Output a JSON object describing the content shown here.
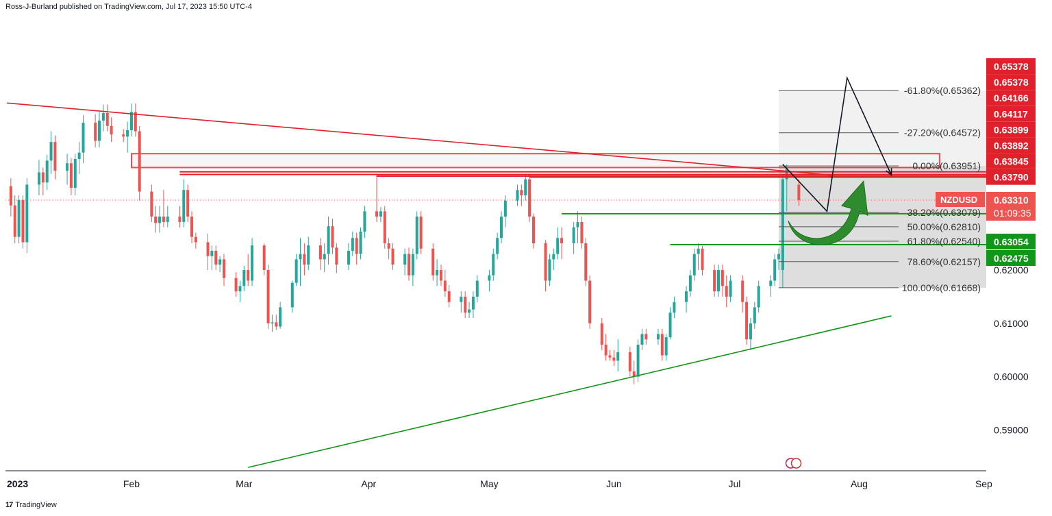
{
  "header": {
    "published_by": "Ross-J-Burland published on TradingView.com, Jul 17, 2023 15:50 UTC-4"
  },
  "footer": {
    "brand": "TradingView",
    "brand_mark": "17"
  },
  "colors": {
    "up": "#26a69a",
    "down": "#ef5350",
    "resistance": "#e0202a",
    "support": "#109618",
    "fib_zone": "#d3d3d3",
    "supply_zone": "#f3f4f7"
  },
  "chart_data": {
    "type": "candlestick",
    "symbol": "NZDUSD",
    "timeframe": "daily",
    "y_axis": {
      "ylim": [
        0.5825,
        0.6688
      ],
      "ticks": [
        "0.62000",
        "0.61000",
        "0.60000",
        "0.59000"
      ],
      "tick_values": [
        0.62,
        0.61,
        0.6,
        0.59
      ]
    },
    "x_axis": {
      "ticks": [
        "2023",
        "Feb",
        "Mar",
        "Apr",
        "May",
        "Jun",
        "Jul",
        "Aug",
        "Sep"
      ],
      "tick_dates": [
        "2023-01-01",
        "2023-02-01",
        "2023-03-01",
        "2023-04-01",
        "2023-05-01",
        "2023-06-01",
        "2023-07-01",
        "2023-08-01",
        "2023-09-01"
      ]
    },
    "price_labels": [
      {
        "text": "0.65378",
        "value": 0.65378,
        "color": "#e0202a"
      },
      {
        "text": "0.65378",
        "value": 0.65378,
        "color": "#e0202a"
      },
      {
        "text": "0.64166",
        "value": 0.64166,
        "color": "#e0202a"
      },
      {
        "text": "0.64117",
        "value": 0.64117,
        "color": "#e0202a"
      },
      {
        "text": "0.63899",
        "value": 0.63899,
        "color": "#e0202a"
      },
      {
        "text": "0.63892",
        "value": 0.63892,
        "color": "#e0202a"
      },
      {
        "text": "0.63845",
        "value": 0.63845,
        "color": "#e0202a"
      },
      {
        "text": "0.63790",
        "value": 0.6379,
        "color": "#e0202a"
      }
    ],
    "current_price": {
      "symbol": "NZDUSD",
      "price": "0.63310",
      "value": 0.6331,
      "countdown": "01:09:35"
    },
    "support_labels": [
      {
        "text": "0.63054",
        "value": 0.63054
      },
      {
        "text": "0.62475",
        "value": 0.62475
      }
    ],
    "fibonacci": [
      {
        "label": "-61.80%(0.65362)",
        "value": 0.65362
      },
      {
        "label": "-27.20%(0.64572)",
        "value": 0.64572
      },
      {
        "label": "0.00%(0.63951)",
        "value": 0.63951
      },
      {
        "label": "38.20%(0.63079)",
        "value": 0.63079
      },
      {
        "label": "50.00%(0.62810)",
        "value": 0.6281
      },
      {
        "label": "61.80%(0.62540)",
        "value": 0.6254
      },
      {
        "label": "78.60%(0.62157)",
        "value": 0.62157
      },
      {
        "label": "100.00%(0.61668)",
        "value": 0.61668
      }
    ],
    "horizontal_levels": [
      {
        "start": "2023-02-01",
        "end": "2023-08-21",
        "value": 0.6418,
        "kind": "supply-top"
      },
      {
        "start": "2023-02-01",
        "end": "2023-08-21",
        "value": 0.6392,
        "kind": "supply-bottom"
      },
      {
        "start": "2023-02-13",
        "end": "2023-07-31",
        "value": 0.6384,
        "kind": "resistance"
      },
      {
        "start": "2023-02-13",
        "end": "2023-07-31",
        "value": 0.6379,
        "kind": "resistance"
      },
      {
        "start": "2023-04-03",
        "end": "2023-07-31",
        "value": 0.6376,
        "kind": "resistance"
      },
      {
        "start": "2023-05-11",
        "end": "2023-07-31",
        "value": 0.6374,
        "kind": "resistance"
      },
      {
        "start": "2023-05-19",
        "end": "2023-07-31",
        "value": 0.63054,
        "kind": "support"
      },
      {
        "start": "2023-06-15",
        "end": "2023-07-31",
        "value": 0.62475,
        "kind": "support"
      }
    ],
    "trendlines": [
      {
        "kind": "resistance",
        "start": [
          "2023-01-01",
          0.6513
        ],
        "end": [
          "2023-07-25",
          0.6378
        ]
      },
      {
        "kind": "support",
        "start": [
          "2023-03-02",
          0.583
        ],
        "end": [
          "2023-08-09",
          0.6114
        ]
      }
    ],
    "projection": [
      [
        "2023-07-13",
        0.6398
      ],
      [
        "2023-07-24",
        0.631
      ],
      [
        "2023-07-29",
        0.656
      ],
      [
        "2023-08-09",
        0.6378
      ]
    ],
    "candles_ohlc": [
      [
        "2023-01-02",
        0.6357,
        0.6372,
        0.63,
        0.6321
      ],
      [
        "2023-01-03",
        0.6321,
        0.634,
        0.625,
        0.6262
      ],
      [
        "2023-01-04",
        0.6262,
        0.634,
        0.625,
        0.6331
      ],
      [
        "2023-01-05",
        0.6331,
        0.634,
        0.624,
        0.6252
      ],
      [
        "2023-01-06",
        0.6252,
        0.6372,
        0.6232,
        0.636
      ],
      [
        "2023-01-09",
        0.636,
        0.6406,
        0.634,
        0.6383
      ],
      [
        "2023-01-10",
        0.6383,
        0.6392,
        0.634,
        0.6364
      ],
      [
        "2023-01-11",
        0.6364,
        0.6416,
        0.635,
        0.6405
      ],
      [
        "2023-01-12",
        0.6405,
        0.646,
        0.638,
        0.644
      ],
      [
        "2023-01-13",
        0.644,
        0.6452,
        0.637,
        0.6386
      ],
      [
        "2023-01-16",
        0.6386,
        0.6418,
        0.636,
        0.64
      ],
      [
        "2023-01-17",
        0.64,
        0.641,
        0.634,
        0.6354
      ],
      [
        "2023-01-18",
        0.6354,
        0.6418,
        0.634,
        0.6408
      ],
      [
        "2023-01-19",
        0.6408,
        0.644,
        0.638,
        0.642
      ],
      [
        "2023-01-20",
        0.642,
        0.649,
        0.64,
        0.6476
      ],
      [
        "2023-01-23",
        0.6476,
        0.6492,
        0.643,
        0.6442
      ],
      [
        "2023-01-24",
        0.6442,
        0.6496,
        0.643,
        0.648
      ],
      [
        "2023-01-25",
        0.648,
        0.651,
        0.646,
        0.6494
      ],
      [
        "2023-01-26",
        0.6494,
        0.651,
        0.646,
        0.647
      ],
      [
        "2023-01-27",
        0.647,
        0.6486,
        0.644,
        0.6454
      ],
      [
        "2023-01-30",
        0.6454,
        0.6464,
        0.644,
        0.645
      ],
      [
        "2023-01-31",
        0.645,
        0.6478,
        0.642,
        0.6462
      ],
      [
        "2023-02-01",
        0.6462,
        0.6512,
        0.645,
        0.6496
      ],
      [
        "2023-02-02",
        0.6496,
        0.6512,
        0.645,
        0.646
      ],
      [
        "2023-02-03",
        0.646,
        0.647,
        0.633,
        0.6347
      ],
      [
        "2023-02-06",
        0.6347,
        0.636,
        0.629,
        0.63
      ],
      [
        "2023-02-07",
        0.63,
        0.632,
        0.627,
        0.6288
      ],
      [
        "2023-02-08",
        0.6288,
        0.632,
        0.627,
        0.63
      ],
      [
        "2023-02-09",
        0.63,
        0.635,
        0.628,
        0.629
      ],
      [
        "2023-02-10",
        0.629,
        0.632,
        0.628,
        0.63
      ],
      [
        "2023-02-13",
        0.63,
        0.632,
        0.628,
        0.629
      ],
      [
        "2023-02-14",
        0.629,
        0.637,
        0.628,
        0.635
      ],
      [
        "2023-02-15",
        0.635,
        0.636,
        0.629,
        0.63
      ],
      [
        "2023-02-16",
        0.63,
        0.631,
        0.625,
        0.6262
      ],
      [
        "2023-02-17",
        0.6262,
        0.627,
        0.624,
        0.6252
      ],
      [
        "2023-02-20",
        0.6252,
        0.6268,
        0.62,
        0.6226
      ],
      [
        "2023-02-21",
        0.6226,
        0.6246,
        0.62,
        0.6236
      ],
      [
        "2023-02-22",
        0.6236,
        0.6246,
        0.62,
        0.621
      ],
      [
        "2023-02-23",
        0.621,
        0.6226,
        0.6196,
        0.622
      ],
      [
        "2023-02-24",
        0.622,
        0.623,
        0.617,
        0.6185
      ],
      [
        "2023-02-27",
        0.6185,
        0.6196,
        0.615,
        0.616
      ],
      [
        "2023-02-28",
        0.616,
        0.618,
        0.614,
        0.617
      ],
      [
        "2023-03-01",
        0.617,
        0.6208,
        0.616,
        0.62
      ],
      [
        "2023-03-02",
        0.62,
        0.623,
        0.617,
        0.618
      ],
      [
        "2023-03-03",
        0.618,
        0.626,
        0.617,
        0.6246
      ],
      [
        "2023-03-06",
        0.6246,
        0.625,
        0.619,
        0.62
      ],
      [
        "2023-03-07",
        0.62,
        0.621,
        0.609,
        0.61
      ],
      [
        "2023-03-08",
        0.61,
        0.6116,
        0.6084,
        0.6102
      ],
      [
        "2023-03-09",
        0.6102,
        0.6116,
        0.6088,
        0.6094
      ],
      [
        "2023-03-10",
        0.6094,
        0.614,
        0.609,
        0.613
      ],
      [
        "2023-03-13",
        0.613,
        0.618,
        0.612,
        0.6176
      ],
      [
        "2023-03-14",
        0.6176,
        0.623,
        0.617,
        0.622
      ],
      [
        "2023-03-15",
        0.622,
        0.626,
        0.617,
        0.623
      ],
      [
        "2023-03-16",
        0.623,
        0.625,
        0.619,
        0.621
      ],
      [
        "2023-03-17",
        0.621,
        0.6262,
        0.62,
        0.6246
      ],
      [
        "2023-03-20",
        0.6246,
        0.626,
        0.62,
        0.622
      ],
      [
        "2023-03-21",
        0.622,
        0.625,
        0.6196,
        0.623
      ],
      [
        "2023-03-22",
        0.623,
        0.63,
        0.621,
        0.6282
      ],
      [
        "2023-03-23",
        0.6282,
        0.6296,
        0.623,
        0.6242
      ],
      [
        "2023-03-24",
        0.6242,
        0.625,
        0.6194,
        0.621
      ],
      [
        "2023-03-27",
        0.621,
        0.625,
        0.62,
        0.6236
      ],
      [
        "2023-03-28",
        0.6236,
        0.6272,
        0.6226,
        0.626
      ],
      [
        "2023-03-29",
        0.626,
        0.627,
        0.621,
        0.623
      ],
      [
        "2023-03-30",
        0.623,
        0.628,
        0.622,
        0.6272
      ],
      [
        "2023-03-31",
        0.6272,
        0.632,
        0.626,
        0.631
      ],
      [
        "2023-04-03",
        0.631,
        0.638,
        0.629,
        0.63
      ],
      [
        "2023-04-04",
        0.63,
        0.6318,
        0.629,
        0.631
      ],
      [
        "2023-04-05",
        0.631,
        0.632,
        0.624,
        0.625
      ],
      [
        "2023-04-06",
        0.625,
        0.626,
        0.622,
        0.624
      ],
      [
        "2023-04-07",
        0.624,
        0.625,
        0.62,
        0.621
      ],
      [
        "2023-04-10",
        0.621,
        0.624,
        0.619,
        0.623
      ],
      [
        "2023-04-11",
        0.623,
        0.6242,
        0.618,
        0.619
      ],
      [
        "2023-04-12",
        0.619,
        0.624,
        0.617,
        0.623
      ],
      [
        "2023-04-13",
        0.623,
        0.631,
        0.622,
        0.63
      ],
      [
        "2023-04-14",
        0.63,
        0.631,
        0.623,
        0.624
      ],
      [
        "2023-04-17",
        0.624,
        0.625,
        0.618,
        0.619
      ],
      [
        "2023-04-18",
        0.619,
        0.622,
        0.617,
        0.62
      ],
      [
        "2023-04-19",
        0.62,
        0.621,
        0.617,
        0.618
      ],
      [
        "2023-04-20",
        0.618,
        0.62,
        0.615,
        0.616
      ],
      [
        "2023-04-21",
        0.616,
        0.6172,
        0.613,
        0.614
      ],
      [
        "2023-04-24",
        0.614,
        0.616,
        0.612,
        0.615
      ],
      [
        "2023-04-25",
        0.615,
        0.616,
        0.611,
        0.612
      ],
      [
        "2023-04-26",
        0.612,
        0.614,
        0.611,
        0.6126
      ],
      [
        "2023-04-27",
        0.6126,
        0.616,
        0.611,
        0.615
      ],
      [
        "2023-04-28",
        0.615,
        0.619,
        0.614,
        0.618
      ],
      [
        "2023-05-01",
        0.618,
        0.62,
        0.616,
        0.619
      ],
      [
        "2023-05-02",
        0.619,
        0.624,
        0.618,
        0.623
      ],
      [
        "2023-05-03",
        0.623,
        0.627,
        0.622,
        0.626
      ],
      [
        "2023-05-04",
        0.626,
        0.631,
        0.625,
        0.63
      ],
      [
        "2023-05-05",
        0.63,
        0.634,
        0.628,
        0.633
      ],
      [
        "2023-05-08",
        0.633,
        0.636,
        0.632,
        0.635
      ],
      [
        "2023-05-09",
        0.635,
        0.636,
        0.632,
        0.634
      ],
      [
        "2023-05-10",
        0.634,
        0.638,
        0.633,
        0.637
      ],
      [
        "2023-05-11",
        0.637,
        0.638,
        0.629,
        0.63
      ],
      [
        "2023-05-12",
        0.63,
        0.6306,
        0.624,
        0.625
      ],
      [
        "2023-05-15",
        0.625,
        0.6256,
        0.616,
        0.618
      ],
      [
        "2023-05-16",
        0.618,
        0.623,
        0.617,
        0.622
      ],
      [
        "2023-05-17",
        0.622,
        0.624,
        0.62,
        0.623
      ],
      [
        "2023-05-18",
        0.623,
        0.628,
        0.622,
        0.626
      ],
      [
        "2023-05-19",
        0.626,
        0.628,
        0.622,
        0.625
      ],
      [
        "2023-05-22",
        0.625,
        0.629,
        0.623,
        0.628
      ],
      [
        "2023-05-23",
        0.628,
        0.631,
        0.625,
        0.629
      ],
      [
        "2023-05-24",
        0.629,
        0.63,
        0.624,
        0.625
      ],
      [
        "2023-05-25",
        0.625,
        0.626,
        0.617,
        0.618
      ],
      [
        "2023-05-26",
        0.618,
        0.619,
        0.609,
        0.61
      ],
      [
        "2023-05-29",
        0.61,
        0.611,
        0.605,
        0.606
      ],
      [
        "2023-05-30",
        0.606,
        0.608,
        0.603,
        0.604
      ],
      [
        "2023-05-31",
        0.604,
        0.605,
        0.603,
        0.6036
      ],
      [
        "2023-06-01",
        0.6036,
        0.605,
        0.602,
        0.603
      ],
      [
        "2023-06-02",
        0.603,
        0.607,
        0.601,
        0.6046
      ],
      [
        "2023-06-05",
        0.6046,
        0.6056,
        0.6,
        0.601
      ],
      [
        "2023-06-06",
        0.601,
        0.603,
        0.5986,
        0.6
      ],
      [
        "2023-06-07",
        0.6,
        0.607,
        0.599,
        0.606
      ],
      [
        "2023-06-08",
        0.606,
        0.609,
        0.605,
        0.608
      ],
      [
        "2023-06-09",
        0.608,
        0.609,
        0.606,
        0.607
      ],
      [
        "2023-06-12",
        0.607,
        0.609,
        0.606,
        0.608
      ],
      [
        "2023-06-13",
        0.608,
        0.609,
        0.603,
        0.604
      ],
      [
        "2023-06-14",
        0.604,
        0.608,
        0.603,
        0.6074
      ],
      [
        "2023-06-15",
        0.6074,
        0.613,
        0.607,
        0.612
      ],
      [
        "2023-06-16",
        0.612,
        0.615,
        0.611,
        0.614
      ],
      [
        "2023-06-19",
        0.614,
        0.617,
        0.612,
        0.616
      ],
      [
        "2023-06-20",
        0.616,
        0.62,
        0.615,
        0.619
      ],
      [
        "2023-06-21",
        0.619,
        0.624,
        0.618,
        0.623
      ],
      [
        "2023-06-22",
        0.623,
        0.625,
        0.62,
        0.624
      ],
      [
        "2023-06-23",
        0.624,
        0.6245,
        0.619,
        0.62
      ],
      [
        "2023-06-26",
        0.62,
        0.621,
        0.615,
        0.616
      ],
      [
        "2023-06-27",
        0.616,
        0.621,
        0.615,
        0.62
      ],
      [
        "2023-06-28",
        0.62,
        0.621,
        0.615,
        0.617
      ],
      [
        "2023-06-29",
        0.617,
        0.619,
        0.613,
        0.615
      ],
      [
        "2023-06-30",
        0.615,
        0.619,
        0.614,
        0.618
      ],
      [
        "2023-07-03",
        0.618,
        0.619,
        0.612,
        0.614
      ],
      [
        "2023-07-04",
        0.614,
        0.615,
        0.606,
        0.607
      ],
      [
        "2023-07-05",
        0.607,
        0.611,
        0.605,
        0.61
      ],
      [
        "2023-07-06",
        0.61,
        0.614,
        0.609,
        0.613
      ],
      [
        "2023-07-07",
        0.613,
        0.618,
        0.612,
        0.617
      ],
      [
        "2023-07-10",
        0.617,
        0.619,
        0.615,
        0.618
      ],
      [
        "2023-07-11",
        0.618,
        0.623,
        0.617,
        0.622
      ],
      [
        "2023-07-12",
        0.622,
        0.624,
        0.62,
        0.623
      ],
      [
        "2023-07-13",
        0.62,
        0.638,
        0.6167,
        0.637
      ],
      [
        "2023-07-14",
        0.637,
        0.6398,
        0.631,
        0.639
      ],
      [
        "2023-07-17",
        0.636,
        0.637,
        0.632,
        0.6331
      ]
    ],
    "grid": false,
    "legend": "none"
  }
}
